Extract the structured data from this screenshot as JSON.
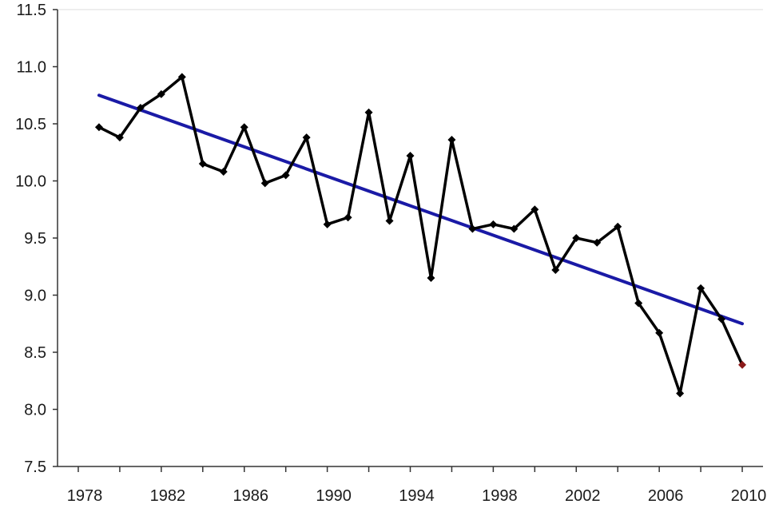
{
  "chart_data": {
    "type": "line",
    "title": "",
    "xlabel": "",
    "ylabel": "",
    "xlim": [
      1977,
      2011
    ],
    "ylim": [
      7.5,
      11.5
    ],
    "grid": false,
    "x_ticks": [
      1978,
      1982,
      1986,
      1990,
      1994,
      1998,
      2002,
      2006,
      2010
    ],
    "y_ticks": [
      7.5,
      8.0,
      8.5,
      9.0,
      9.5,
      10.0,
      10.5,
      11.0,
      11.5
    ],
    "y_tick_labels": [
      "7.5",
      "8.0",
      "8.5",
      "9.0",
      "9.5",
      "10.0",
      "10.5",
      "11.0",
      "11.5"
    ],
    "series": [
      {
        "color": "#000000",
        "marker": "diamond",
        "x": [
          1979,
          1980,
          1981,
          1982,
          1983,
          1984,
          1985,
          1986,
          1987,
          1988,
          1989,
          1990,
          1991,
          1992,
          1993,
          1994,
          1995,
          1996,
          1997,
          1998,
          1999,
          2000,
          2001,
          2002,
          2003,
          2004,
          2005,
          2006,
          2007,
          2008,
          2009,
          2010
        ],
        "y": [
          10.47,
          10.38,
          10.64,
          10.76,
          10.91,
          10.15,
          10.08,
          10.47,
          9.98,
          10.05,
          10.38,
          9.62,
          9.68,
          10.6,
          9.65,
          10.22,
          9.15,
          10.36,
          9.58,
          9.62,
          9.58,
          9.75,
          9.22,
          9.5,
          9.46,
          9.6,
          8.93,
          8.67,
          8.14,
          9.06,
          8.79,
          8.39
        ],
        "highlight_last_color": "#8b1a1a"
      },
      {
        "color": "#1a1aa6",
        "style": "trend",
        "x": [
          1979,
          2010
        ],
        "y": [
          10.75,
          8.75
        ]
      }
    ]
  }
}
